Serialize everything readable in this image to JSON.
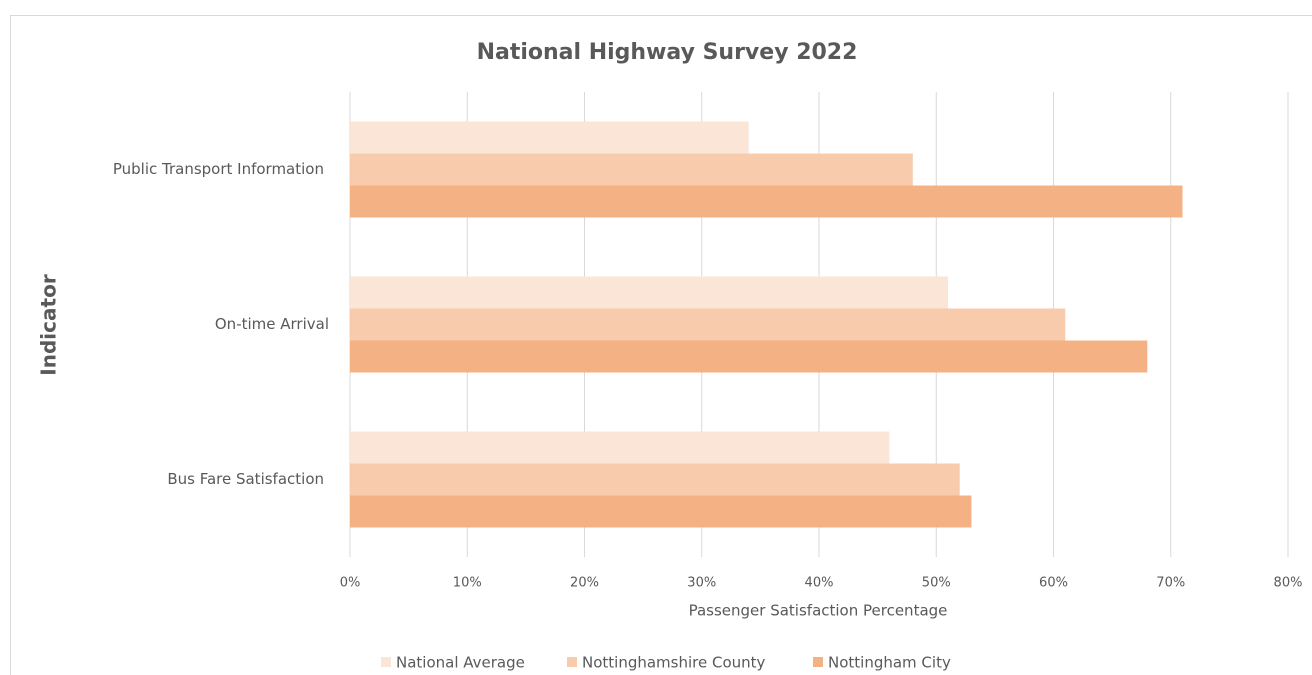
{
  "chart_data": {
    "type": "hbar",
    "title": "National Highway Survey 2022",
    "x_label": "Passenger Satisfaction Percentage",
    "y_label": "Indicator",
    "categories": [
      "Public Transport Information",
      "On-time Arrival",
      "Bus Fare Satisfaction"
    ],
    "series": [
      {
        "name": "National Average",
        "color": "#fbe5d6",
        "values": [
          34,
          51,
          46
        ]
      },
      {
        "name": "Nottinghamshire County",
        "color": "#f8cbad",
        "values": [
          48,
          61,
          52
        ]
      },
      {
        "name": "Nottingham City",
        "color": "#f4b183",
        "values": [
          71,
          68,
          53
        ]
      }
    ],
    "xlim": [
      0,
      80
    ],
    "xticks": [
      {
        "value": 0,
        "label": "0%"
      },
      {
        "value": 10,
        "label": "10%"
      },
      {
        "value": 20,
        "label": "20%"
      },
      {
        "value": 30,
        "label": "30%"
      },
      {
        "value": 40,
        "label": "40%"
      },
      {
        "value": 50,
        "label": "50%"
      },
      {
        "value": 60,
        "label": "60%"
      },
      {
        "value": 70,
        "label": "70%"
      },
      {
        "value": 80,
        "label": "80%"
      }
    ],
    "grid": true,
    "legend": "bottom"
  }
}
